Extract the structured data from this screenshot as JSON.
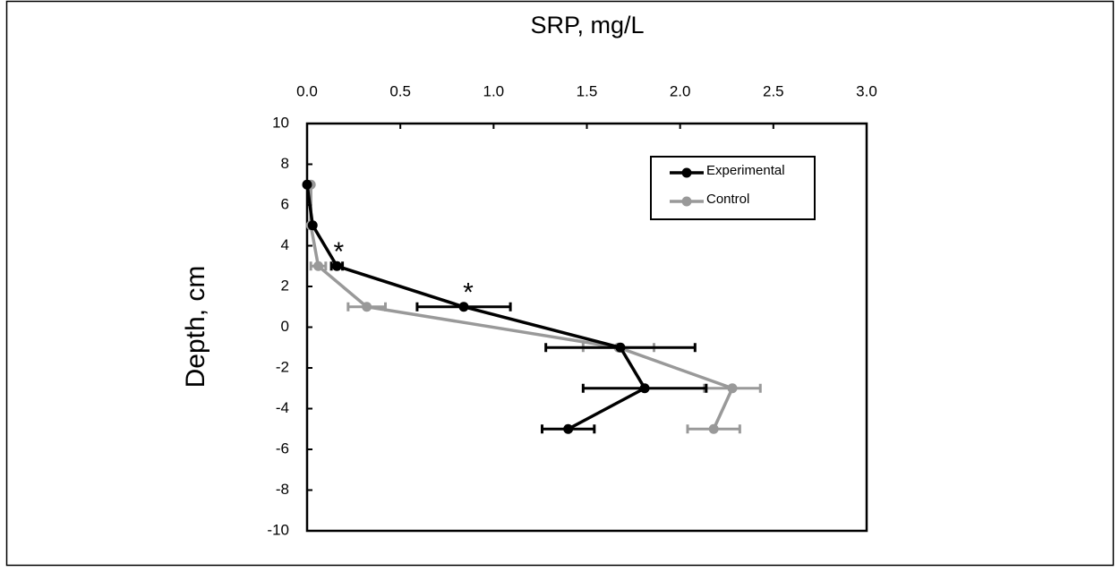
{
  "chart_data": {
    "type": "line",
    "title": "SRP, mg/L",
    "y_label": "Depth, cm",
    "depth": [
      7,
      5,
      3,
      1,
      -1,
      -3,
      -5
    ],
    "series": [
      {
        "name": "Experimental",
        "color": "#000000",
        "values": [
          0.0,
          0.03,
          0.16,
          0.84,
          1.68,
          1.81,
          1.4
        ],
        "errors": [
          0,
          0,
          0.03,
          0.25,
          0.4,
          0.33,
          0.14
        ]
      },
      {
        "name": "Control",
        "color": "#999999",
        "values": [
          0.02,
          0.02,
          0.06,
          0.32,
          1.67,
          2.28,
          2.18
        ],
        "errors": [
          0,
          0,
          0.04,
          0.1,
          0.19,
          0.15,
          0.14
        ]
      }
    ],
    "annotations": [
      "*",
      "*"
    ],
    "xlim": [
      0,
      3
    ],
    "xticks": [
      {
        "value": 0,
        "label": "0.0"
      },
      {
        "value": 0.5,
        "label": "0.5"
      },
      {
        "value": 1,
        "label": "1.0"
      },
      {
        "value": 1.5,
        "label": "1.5"
      },
      {
        "value": 2,
        "label": "2.0"
      },
      {
        "value": 2.5,
        "label": "2.5"
      },
      {
        "value": 3,
        "label": "3.0"
      }
    ],
    "ylim": [
      -10,
      10
    ],
    "yticks": [
      10,
      8,
      6,
      4,
      2,
      0,
      -2,
      -4,
      -6,
      -8,
      -10
    ],
    "legend": "upper right"
  }
}
